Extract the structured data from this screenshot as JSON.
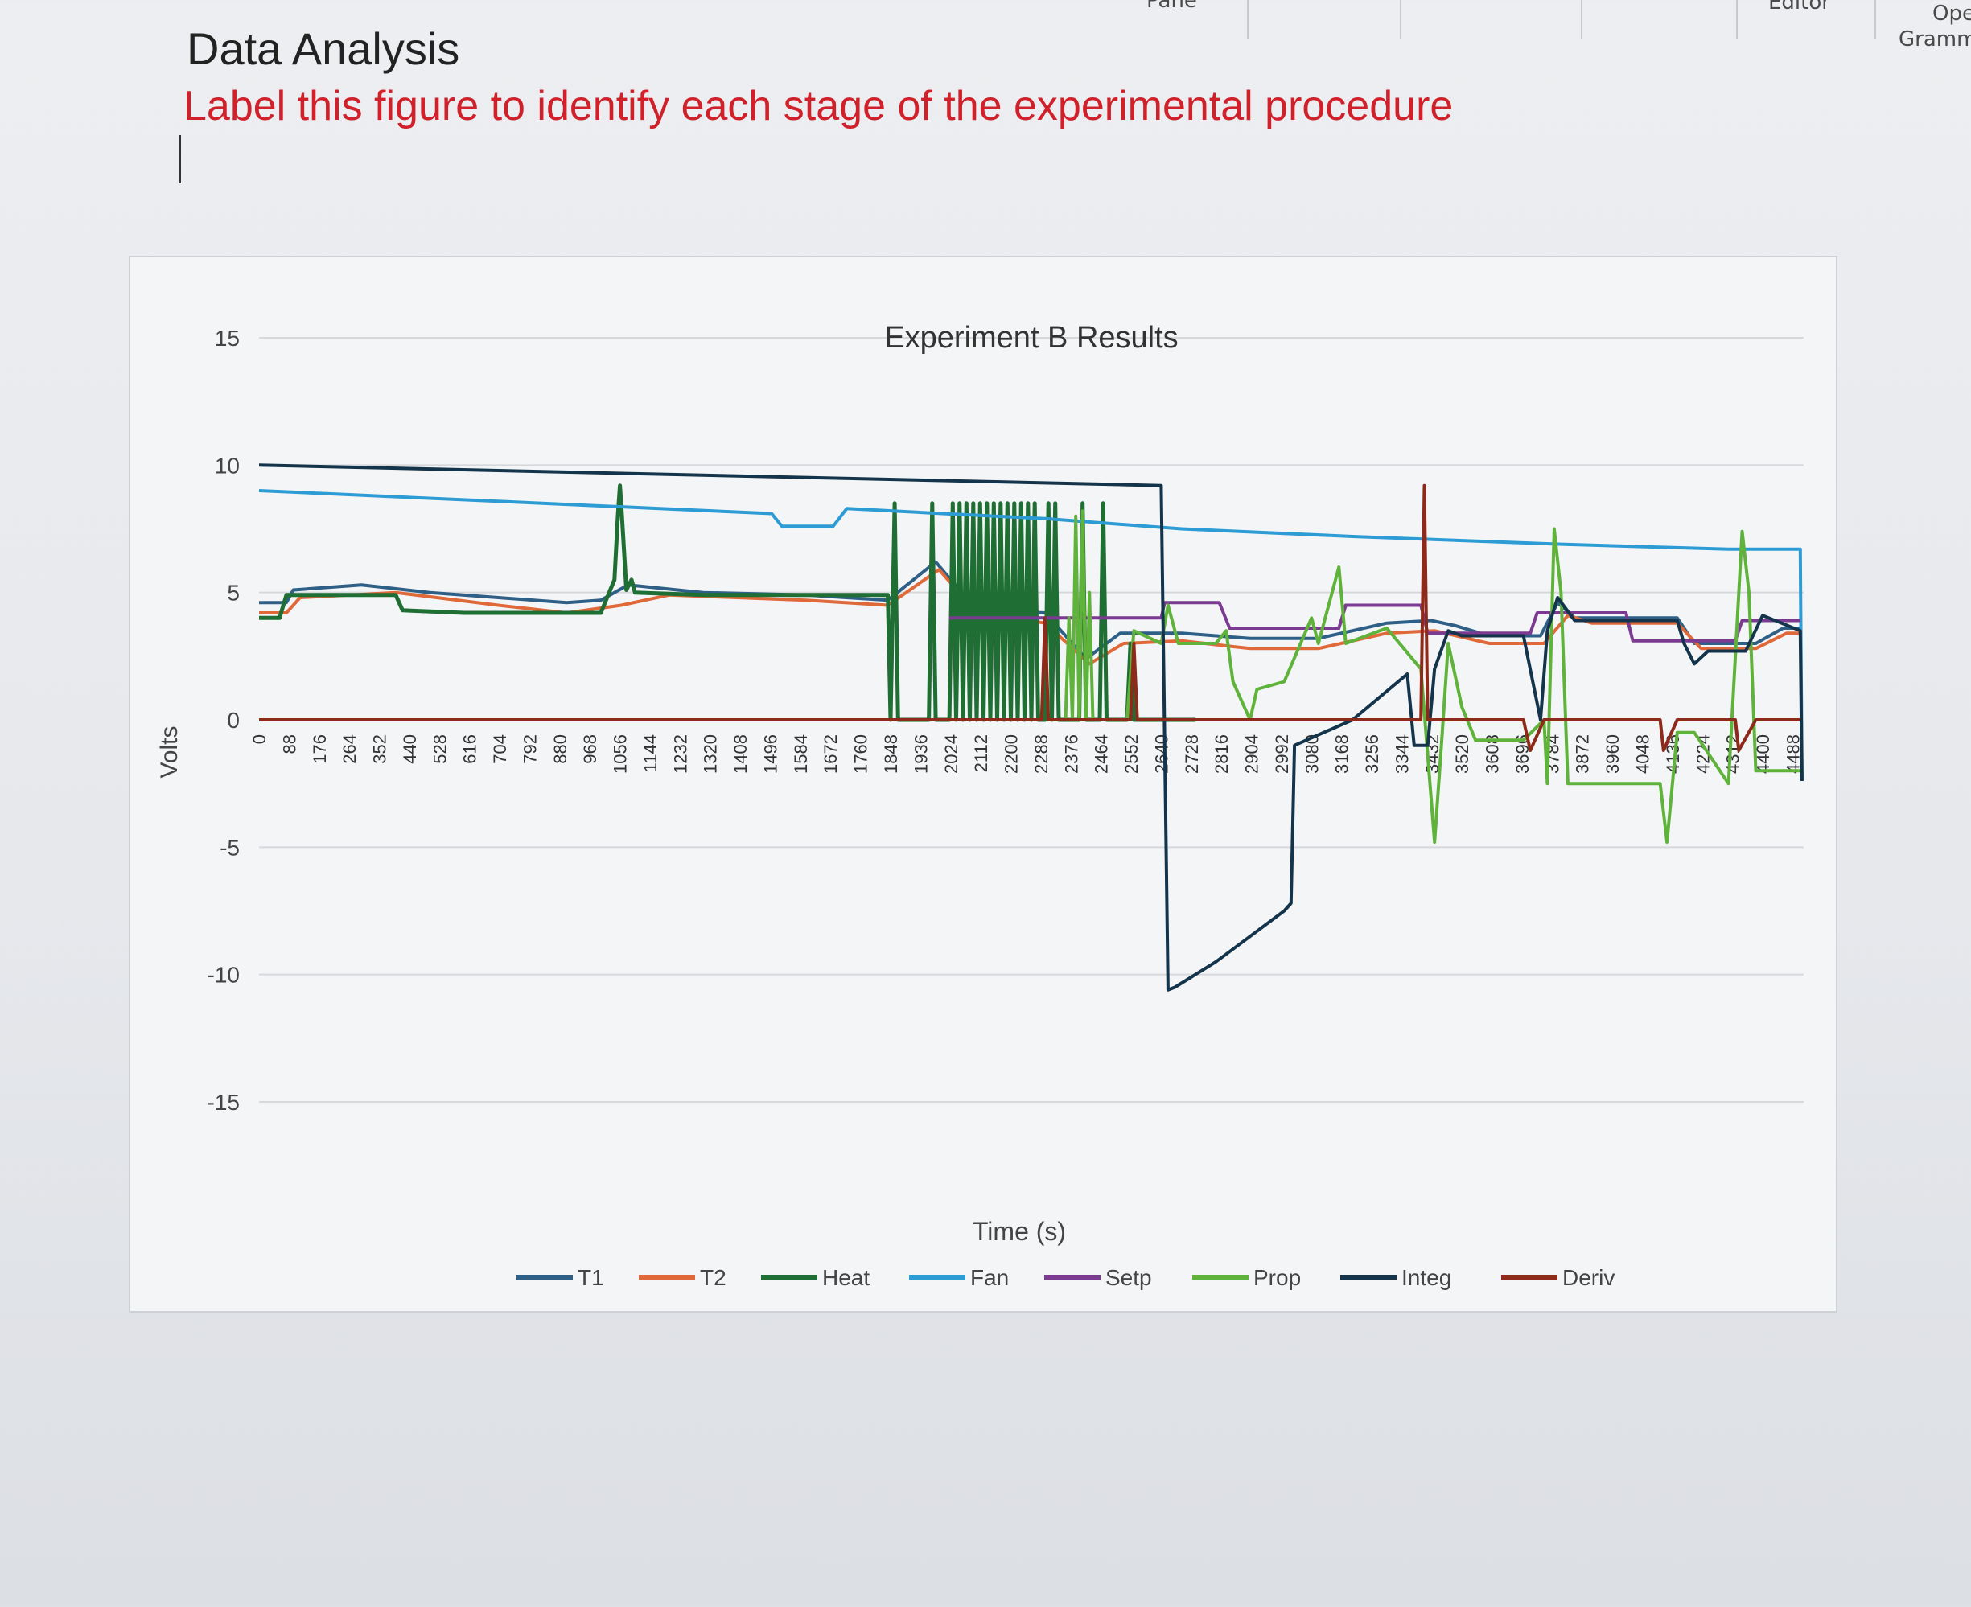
{
  "ribbon": {
    "items": [
      "Pane",
      "Editor",
      "Ope",
      "Gramm"
    ]
  },
  "document": {
    "title": "Data Analysis",
    "instruction": "Label this figure to identify each stage of the experimental procedure"
  },
  "chart_data": {
    "type": "line",
    "title": "Experiment B Results",
    "xlabel": "Time (s)",
    "ylabel": "Volts",
    "ylim": [
      -15,
      15
    ],
    "xlim": [
      0,
      4520
    ],
    "yticks": [
      15,
      10,
      5,
      0,
      -5,
      -10,
      -15
    ],
    "xticks": [
      0,
      88,
      176,
      264,
      352,
      440,
      528,
      616,
      704,
      792,
      880,
      968,
      1056,
      1144,
      1232,
      1320,
      1408,
      1496,
      1584,
      1672,
      1760,
      1848,
      1936,
      2024,
      2112,
      2200,
      2288,
      2376,
      2464,
      2552,
      2640,
      2728,
      2816,
      2904,
      2992,
      3080,
      3168,
      3256,
      3344,
      3432,
      3520,
      3608,
      3696,
      3784,
      3872,
      3960,
      4048,
      4136,
      4224,
      4312,
      4400,
      4488
    ],
    "grid": true,
    "legend_position": "bottom",
    "series": [
      {
        "name": "T1",
        "color": "#2e5f86",
        "points": [
          [
            0,
            4.6
          ],
          [
            80,
            4.6
          ],
          [
            100,
            5.1
          ],
          [
            300,
            5.3
          ],
          [
            500,
            5.0
          ],
          [
            700,
            4.8
          ],
          [
            900,
            4.6
          ],
          [
            1000,
            4.7
          ],
          [
            1080,
            5.3
          ],
          [
            1300,
            5.0
          ],
          [
            1600,
            4.9
          ],
          [
            1840,
            4.7
          ],
          [
            1980,
            6.2
          ],
          [
            2100,
            4.3
          ],
          [
            2300,
            4.2
          ],
          [
            2420,
            2.4
          ],
          [
            2520,
            3.4
          ],
          [
            2700,
            3.4
          ],
          [
            2900,
            3.2
          ],
          [
            3100,
            3.2
          ],
          [
            3300,
            3.8
          ],
          [
            3430,
            3.9
          ],
          [
            3500,
            3.7
          ],
          [
            3600,
            3.3
          ],
          [
            3750,
            3.3
          ],
          [
            3800,
            4.6
          ],
          [
            3850,
            4.0
          ],
          [
            4150,
            4.0
          ],
          [
            4200,
            3.0
          ],
          [
            4380,
            3.0
          ],
          [
            4460,
            3.6
          ],
          [
            4510,
            3.6
          ]
        ]
      },
      {
        "name": "T2",
        "color": "#e0693a",
        "points": [
          [
            0,
            4.2
          ],
          [
            80,
            4.2
          ],
          [
            120,
            4.8
          ],
          [
            400,
            5.0
          ],
          [
            700,
            4.5
          ],
          [
            900,
            4.2
          ],
          [
            1060,
            4.5
          ],
          [
            1200,
            4.9
          ],
          [
            1600,
            4.7
          ],
          [
            1840,
            4.5
          ],
          [
            1990,
            5.9
          ],
          [
            2100,
            4.2
          ],
          [
            2300,
            3.8
          ],
          [
            2430,
            2.2
          ],
          [
            2530,
            3.0
          ],
          [
            2700,
            3.1
          ],
          [
            2900,
            2.8
          ],
          [
            3100,
            2.8
          ],
          [
            3300,
            3.4
          ],
          [
            3440,
            3.5
          ],
          [
            3600,
            3.0
          ],
          [
            3760,
            3.0
          ],
          [
            3830,
            4.1
          ],
          [
            3900,
            3.8
          ],
          [
            4150,
            3.8
          ],
          [
            4220,
            2.8
          ],
          [
            4380,
            2.8
          ],
          [
            4470,
            3.4
          ],
          [
            4510,
            3.4
          ]
        ]
      },
      {
        "name": "Heat",
        "color": "#1f6e33",
        "points": [
          [
            0,
            4.0
          ],
          [
            60,
            4.0
          ],
          [
            80,
            4.9
          ],
          [
            400,
            4.9
          ],
          [
            420,
            4.3
          ],
          [
            600,
            4.2
          ],
          [
            900,
            4.2
          ],
          [
            1000,
            4.2
          ],
          [
            1040,
            5.5
          ],
          [
            1050,
            8.0
          ],
          [
            1056,
            9.2
          ],
          [
            1062,
            8.0
          ],
          [
            1075,
            5.1
          ],
          [
            1090,
            5.5
          ],
          [
            1100,
            5.0
          ],
          [
            1300,
            4.9
          ],
          [
            1500,
            4.9
          ],
          [
            1840,
            4.9
          ],
          [
            1848,
            0
          ],
          [
            1860,
            8.5
          ],
          [
            1870,
            0
          ],
          [
            1960,
            0
          ],
          [
            1970,
            8.5
          ],
          [
            1980,
            0
          ],
          [
            2020,
            0
          ],
          [
            2030,
            8.5
          ],
          [
            2040,
            0
          ],
          [
            2050,
            8.5
          ],
          [
            2060,
            0
          ],
          [
            2070,
            8.5
          ],
          [
            2080,
            0
          ],
          [
            2090,
            8.5
          ],
          [
            2100,
            0
          ],
          [
            2110,
            8.5
          ],
          [
            2120,
            0
          ],
          [
            2130,
            8.5
          ],
          [
            2140,
            0
          ],
          [
            2150,
            8.5
          ],
          [
            2160,
            0
          ],
          [
            2170,
            8.5
          ],
          [
            2180,
            0
          ],
          [
            2190,
            8.5
          ],
          [
            2200,
            0
          ],
          [
            2210,
            8.5
          ],
          [
            2220,
            0
          ],
          [
            2230,
            8.5
          ],
          [
            2240,
            0
          ],
          [
            2250,
            8.5
          ],
          [
            2260,
            0
          ],
          [
            2270,
            8.5
          ],
          [
            2280,
            0
          ],
          [
            2300,
            0
          ],
          [
            2310,
            8.5
          ],
          [
            2320,
            0
          ],
          [
            2330,
            8.5
          ],
          [
            2340,
            0
          ],
          [
            2400,
            0
          ],
          [
            2410,
            8.5
          ],
          [
            2420,
            0
          ],
          [
            2460,
            0
          ],
          [
            2470,
            8.5
          ],
          [
            2480,
            0
          ],
          [
            2540,
            0
          ],
          [
            2550,
            3.0
          ],
          [
            2560,
            0
          ],
          [
            2640,
            0
          ],
          [
            2740,
            0
          ]
        ]
      },
      {
        "name": "Fan",
        "color": "#2d9bd4",
        "points": [
          [
            0,
            9.0
          ],
          [
            1500,
            8.1
          ],
          [
            1530,
            7.6
          ],
          [
            1680,
            7.6
          ],
          [
            1720,
            8.3
          ],
          [
            2000,
            8.1
          ],
          [
            2300,
            7.9
          ],
          [
            2700,
            7.5
          ],
          [
            3200,
            7.2
          ],
          [
            3800,
            6.9
          ],
          [
            4300,
            6.7
          ],
          [
            4510,
            6.7
          ],
          [
            4515,
            -2.4
          ]
        ]
      },
      {
        "name": "Setp",
        "color": "#7a3b91",
        "points": [
          [
            2020,
            4.0
          ],
          [
            2360,
            4.0
          ],
          [
            2640,
            4.0
          ],
          [
            2650,
            4.6
          ],
          [
            2810,
            4.6
          ],
          [
            2840,
            3.6
          ],
          [
            3160,
            3.6
          ],
          [
            3180,
            4.5
          ],
          [
            3400,
            4.5
          ],
          [
            3420,
            3.4
          ],
          [
            3720,
            3.4
          ],
          [
            3740,
            4.2
          ],
          [
            4000,
            4.2
          ],
          [
            4020,
            3.1
          ],
          [
            4320,
            3.1
          ],
          [
            4340,
            3.9
          ],
          [
            4510,
            3.9
          ]
        ]
      },
      {
        "name": "Prop",
        "color": "#5fb33a",
        "points": [
          [
            2360,
            0
          ],
          [
            2370,
            4.0
          ],
          [
            2380,
            0
          ],
          [
            2390,
            8.0
          ],
          [
            2400,
            0
          ],
          [
            2410,
            8.2
          ],
          [
            2420,
            0
          ],
          [
            2430,
            5.0
          ],
          [
            2440,
            0
          ],
          [
            2540,
            0
          ],
          [
            2560,
            3.5
          ],
          [
            2640,
            3.0
          ],
          [
            2660,
            4.5
          ],
          [
            2690,
            3.0
          ],
          [
            2800,
            3.0
          ],
          [
            2830,
            3.5
          ],
          [
            2850,
            1.5
          ],
          [
            2900,
            0
          ],
          [
            2920,
            1.2
          ],
          [
            3000,
            1.5
          ],
          [
            3080,
            4.0
          ],
          [
            3100,
            3.0
          ],
          [
            3140,
            5.0
          ],
          [
            3160,
            6.0
          ],
          [
            3180,
            3.0
          ],
          [
            3300,
            3.6
          ],
          [
            3400,
            2.0
          ],
          [
            3440,
            -4.8
          ],
          [
            3460,
            -1.0
          ],
          [
            3480,
            3.0
          ],
          [
            3520,
            0.5
          ],
          [
            3560,
            -0.8
          ],
          [
            3700,
            -0.8
          ],
          [
            3760,
            0
          ],
          [
            3770,
            -2.5
          ],
          [
            3790,
            7.5
          ],
          [
            3810,
            5.0
          ],
          [
            3830,
            -2.5
          ],
          [
            3850,
            -2.5
          ],
          [
            4100,
            -2.5
          ],
          [
            4120,
            -4.8
          ],
          [
            4150,
            -0.5
          ],
          [
            4200,
            -0.5
          ],
          [
            4300,
            -2.5
          ],
          [
            4340,
            7.4
          ],
          [
            4360,
            5.0
          ],
          [
            4380,
            -2.0
          ],
          [
            4420,
            -2.0
          ],
          [
            4510,
            -2.0
          ]
        ]
      },
      {
        "name": "Integ",
        "color": "#13344a",
        "points": [
          [
            0,
            10.0
          ],
          [
            2640,
            9.2
          ],
          [
            2660,
            -10.6
          ],
          [
            2680,
            -10.5
          ],
          [
            2800,
            -9.5
          ],
          [
            2900,
            -8.5
          ],
          [
            3000,
            -7.5
          ],
          [
            3020,
            -7.2
          ],
          [
            3030,
            -1.0
          ],
          [
            3200,
            0
          ],
          [
            3360,
            1.8
          ],
          [
            3380,
            -1.0
          ],
          [
            3420,
            -1.0
          ],
          [
            3440,
            2.0
          ],
          [
            3480,
            3.5
          ],
          [
            3520,
            3.3
          ],
          [
            3700,
            3.3
          ],
          [
            3750,
            0
          ],
          [
            3770,
            3.5
          ],
          [
            3800,
            4.8
          ],
          [
            3850,
            3.9
          ],
          [
            4150,
            3.9
          ],
          [
            4170,
            3.0
          ],
          [
            4200,
            2.2
          ],
          [
            4240,
            2.7
          ],
          [
            4350,
            2.7
          ],
          [
            4400,
            4.1
          ],
          [
            4510,
            3.5
          ],
          [
            4515,
            -2.4
          ]
        ]
      },
      {
        "name": "Deriv",
        "color": "#8e2a1a",
        "points": [
          [
            0,
            0
          ],
          [
            1000,
            0
          ],
          [
            2000,
            0
          ],
          [
            2290,
            0
          ],
          [
            2300,
            4.0
          ],
          [
            2310,
            0
          ],
          [
            2550,
            0
          ],
          [
            2560,
            3.0
          ],
          [
            2570,
            0
          ],
          [
            2700,
            0
          ],
          [
            3100,
            0
          ],
          [
            3400,
            0
          ],
          [
            3410,
            9.2
          ],
          [
            3420,
            0
          ],
          [
            3700,
            0
          ],
          [
            3720,
            -1.2
          ],
          [
            3760,
            0
          ],
          [
            4100,
            0
          ],
          [
            4110,
            -1.2
          ],
          [
            4150,
            0
          ],
          [
            4320,
            0
          ],
          [
            4330,
            -1.2
          ],
          [
            4380,
            0
          ],
          [
            4510,
            0
          ]
        ]
      }
    ]
  }
}
